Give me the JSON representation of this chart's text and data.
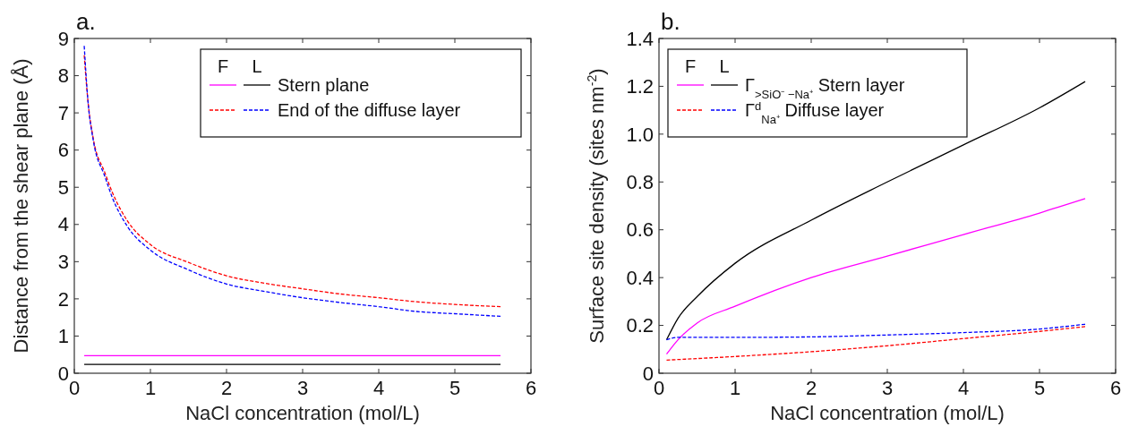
{
  "chart_data": [
    {
      "type": "line",
      "title": "a.",
      "xlabel": "NaCl concentration (mol/L)",
      "ylabel": "Distance from the shear plane (Å)",
      "xlim": [
        0,
        6
      ],
      "ylim": [
        0,
        9
      ],
      "xticks": [
        0,
        1,
        2,
        3,
        4,
        5,
        6
      ],
      "yticks": [
        0,
        1,
        2,
        3,
        4,
        5,
        6,
        7,
        8,
        9
      ],
      "grid": false,
      "legend": "top right",
      "annotations": [
        "F",
        "L"
      ],
      "series": [
        {
          "color": "#ff00ff",
          "line_style": "solid",
          "x": [
            0.13,
            5.6
          ],
          "values": [
            0.47,
            0.47
          ]
        },
        {
          "name": "Stern plane",
          "color": "#000000",
          "line_style": "solid",
          "x": [
            0.13,
            5.6
          ],
          "values": [
            0.24,
            0.24
          ]
        },
        {
          "color": "#ff0000",
          "line_style": "dashed",
          "x": [
            0.13,
            0.18,
            0.25,
            0.4,
            0.5,
            0.7,
            1,
            1.5,
            2,
            2.5,
            3,
            3.5,
            4,
            4.5,
            5,
            5.6
          ],
          "values": [
            8.55,
            7.3,
            6.3,
            5.4,
            4.86,
            4.09,
            3.46,
            2.98,
            2.62,
            2.42,
            2.27,
            2.13,
            2.03,
            1.92,
            1.85,
            1.79
          ]
        },
        {
          "name": "End of the diffuse layer",
          "color": "#0000ff",
          "line_style": "dashed",
          "x": [
            0.13,
            0.18,
            0.25,
            0.4,
            0.5,
            0.7,
            1,
            1.5,
            2,
            2.5,
            3,
            3.5,
            4,
            4.5,
            5,
            5.6
          ],
          "values": [
            8.8,
            7.3,
            6.25,
            5.3,
            4.72,
            3.94,
            3.31,
            2.78,
            2.4,
            2.2,
            2.03,
            1.9,
            1.79,
            1.66,
            1.6,
            1.53
          ]
        }
      ]
    },
    {
      "type": "line",
      "title": "b.",
      "xlabel": "NaCl concentration (mol/L)",
      "ylabel": "Surface site density (sites nm$^{-2}$)",
      "xlim": [
        0,
        6
      ],
      "ylim": [
        0,
        1.4
      ],
      "xticks": [
        0,
        1,
        2,
        3,
        4,
        5,
        6
      ],
      "yticks": [
        0,
        0.2,
        0.4,
        0.6,
        0.8,
        {
          "value": 1,
          "label": "1.0"
        },
        1.2,
        1.4
      ],
      "grid": false,
      "legend": "top left",
      "annotations": [
        "F",
        "L"
      ],
      "series": [
        {
          "color": "#ff00ff",
          "line_style": "solid",
          "x": [
            0.1,
            0.25,
            0.5,
            1,
            2,
            3,
            4,
            5,
            5.6
          ],
          "values": [
            0.08,
            0.14,
            0.21,
            0.28,
            0.4,
            0.49,
            0.58,
            0.67,
            0.73
          ]
        },
        {
          "name": "Γ$_{>SiO⁻ −Na⁺}$ Stern layer",
          "color": "#000000",
          "line_style": "solid",
          "x": [
            0.1,
            0.25,
            0.5,
            1,
            2,
            3,
            4,
            5,
            5.6
          ],
          "values": [
            0.14,
            0.23,
            0.32,
            0.46,
            0.64,
            0.8,
            0.955,
            1.11,
            1.22
          ]
        },
        {
          "color": "#ff0000",
          "line_style": "dashed",
          "x": [
            0.1,
            1,
            2,
            3,
            4,
            5,
            5.6
          ],
          "values": [
            0.055,
            0.07,
            0.09,
            0.115,
            0.145,
            0.175,
            0.195
          ]
        },
        {
          "name": "Γ$^{d}$$_{Na⁺}$ Diffuse layer",
          "color": "#0000ff",
          "line_style": "dashed",
          "x": [
            0.1,
            0.25,
            1,
            2,
            3,
            4,
            5,
            5.6
          ],
          "values": [
            0.14,
            0.15,
            0.15,
            0.152,
            0.16,
            0.17,
            0.185,
            0.205
          ]
        }
      ]
    }
  ]
}
